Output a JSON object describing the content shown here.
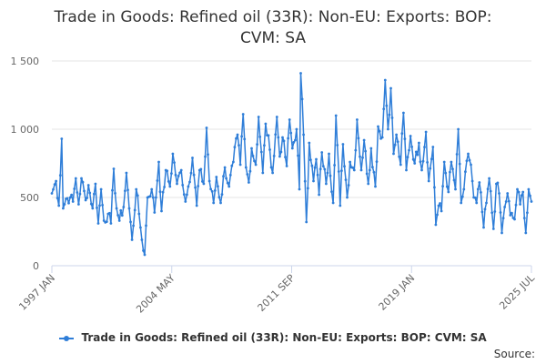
{
  "chart_data": {
    "type": "line",
    "title": "Trade in Goods: Refined oil (33R): Non-EU: Exports: BOP: CVM: SA",
    "title_line1": "Trade in Goods: Refined oil (33R): Non-EU: Exports: BOP:",
    "title_line2": "CVM: SA",
    "xlabel": "",
    "ylabel": "",
    "ylim": [
      0,
      1500
    ],
    "yticks": [
      0,
      500,
      1000,
      1500
    ],
    "ytick_labels": [
      "0",
      "500",
      "1 000",
      "1 500"
    ],
    "x_start": "1997 JAN",
    "x_end": "2025 JUL",
    "xtick_labels": [
      "1997 JAN",
      "2004 MAY",
      "2011 SEP",
      "2019 JAN",
      "2025 JUL"
    ],
    "series_color": "#2f7ed8",
    "series": [
      {
        "name": "Trade in Goods: Refined oil (33R): Non-EU: Exports: BOP: CVM: SA",
        "anchor_points": [
          [
            0,
            530
          ],
          [
            3,
            620
          ],
          [
            5,
            440
          ],
          [
            7,
            930
          ],
          [
            8,
            420
          ],
          [
            10,
            490
          ],
          [
            13,
            500
          ],
          [
            15,
            470
          ],
          [
            17,
            640
          ],
          [
            19,
            450
          ],
          [
            21,
            640
          ],
          [
            24,
            480
          ],
          [
            26,
            590
          ],
          [
            29,
            420
          ],
          [
            31,
            600
          ],
          [
            33,
            310
          ],
          [
            35,
            560
          ],
          [
            37,
            330
          ],
          [
            40,
            380
          ],
          [
            42,
            310
          ],
          [
            44,
            710
          ],
          [
            46,
            420
          ],
          [
            48,
            330
          ],
          [
            51,
            430
          ],
          [
            53,
            680
          ],
          [
            55,
            420
          ],
          [
            57,
            190
          ],
          [
            60,
            560
          ],
          [
            62,
            380
          ],
          [
            64,
            190
          ],
          [
            66,
            80
          ],
          [
            68,
            500
          ],
          [
            71,
            560
          ],
          [
            73,
            390
          ],
          [
            76,
            760
          ],
          [
            78,
            400
          ],
          [
            81,
            700
          ],
          [
            84,
            580
          ],
          [
            86,
            820
          ],
          [
            89,
            600
          ],
          [
            92,
            700
          ],
          [
            95,
            470
          ],
          [
            97,
            580
          ],
          [
            100,
            790
          ],
          [
            103,
            440
          ],
          [
            105,
            700
          ],
          [
            108,
            600
          ],
          [
            110,
            1010
          ],
          [
            112,
            620
          ],
          [
            115,
            460
          ],
          [
            117,
            650
          ],
          [
            120,
            460
          ],
          [
            123,
            720
          ],
          [
            126,
            580
          ],
          [
            129,
            760
          ],
          [
            132,
            960
          ],
          [
            134,
            740
          ],
          [
            136,
            1110
          ],
          [
            138,
            720
          ],
          [
            140,
            610
          ],
          [
            142,
            860
          ],
          [
            145,
            740
          ],
          [
            147,
            1090
          ],
          [
            150,
            680
          ],
          [
            152,
            1040
          ],
          [
            155,
            850
          ],
          [
            157,
            680
          ],
          [
            160,
            1090
          ],
          [
            162,
            800
          ],
          [
            164,
            940
          ],
          [
            167,
            730
          ],
          [
            169,
            1070
          ],
          [
            171,
            860
          ],
          [
            174,
            1000
          ],
          [
            176,
            560
          ],
          [
            177,
            1410
          ],
          [
            179,
            960
          ],
          [
            181,
            320
          ],
          [
            183,
            900
          ],
          [
            186,
            620
          ],
          [
            188,
            780
          ],
          [
            190,
            520
          ],
          [
            192,
            830
          ],
          [
            195,
            600
          ],
          [
            197,
            820
          ],
          [
            200,
            460
          ],
          [
            202,
            1100
          ],
          [
            205,
            440
          ],
          [
            207,
            890
          ],
          [
            210,
            500
          ],
          [
            212,
            760
          ],
          [
            215,
            700
          ],
          [
            217,
            1070
          ],
          [
            220,
            700
          ],
          [
            222,
            920
          ],
          [
            225,
            600
          ],
          [
            227,
            860
          ],
          [
            230,
            580
          ],
          [
            232,
            1020
          ],
          [
            235,
            940
          ],
          [
            237,
            1360
          ],
          [
            239,
            1000
          ],
          [
            241,
            1300
          ],
          [
            243,
            820
          ],
          [
            245,
            960
          ],
          [
            248,
            740
          ],
          [
            250,
            1120
          ],
          [
            252,
            700
          ],
          [
            255,
            950
          ],
          [
            258,
            750
          ],
          [
            261,
            900
          ],
          [
            263,
            700
          ],
          [
            266,
            980
          ],
          [
            268,
            620
          ],
          [
            271,
            870
          ],
          [
            273,
            300
          ],
          [
            275,
            440
          ],
          [
            277,
            400
          ],
          [
            279,
            760
          ],
          [
            282,
            540
          ],
          [
            284,
            760
          ],
          [
            287,
            560
          ],
          [
            289,
            1000
          ],
          [
            291,
            460
          ],
          [
            293,
            560
          ],
          [
            296,
            820
          ],
          [
            298,
            740
          ],
          [
            300,
            500
          ],
          [
            302,
            460
          ],
          [
            304,
            610
          ],
          [
            307,
            280
          ],
          [
            309,
            460
          ],
          [
            311,
            640
          ],
          [
            314,
            270
          ],
          [
            316,
            600
          ],
          [
            318,
            530
          ],
          [
            320,
            240
          ],
          [
            322,
            430
          ],
          [
            324,
            530
          ],
          [
            326,
            370
          ],
          [
            329,
            340
          ],
          [
            331,
            560
          ],
          [
            333,
            450
          ],
          [
            335,
            540
          ],
          [
            337,
            240
          ],
          [
            339,
            560
          ],
          [
            341,
            470
          ]
        ]
      }
    ]
  },
  "legend": {
    "label": "Trade in Goods: Refined oil (33R): Non-EU: Exports: BOP: CVM: SA"
  },
  "source_label": "Source:"
}
